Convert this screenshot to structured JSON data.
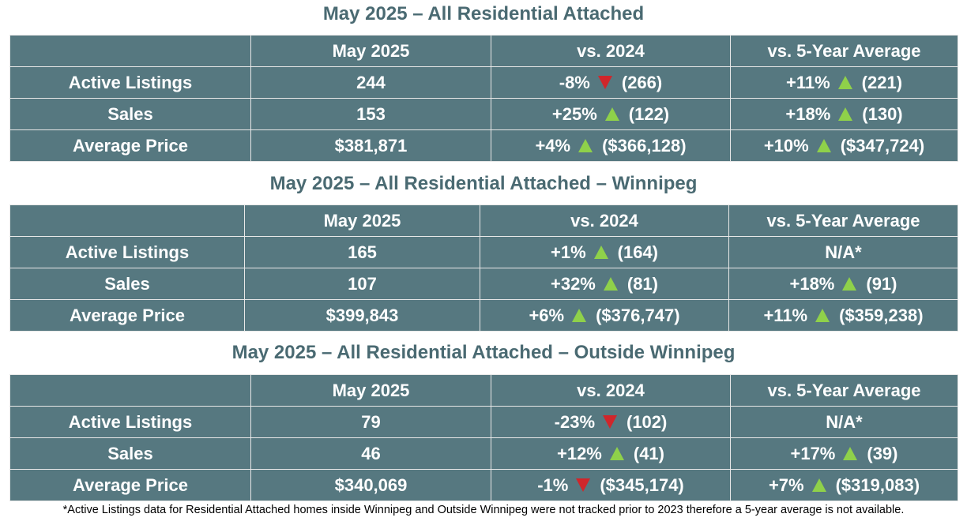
{
  "columns": {
    "current": "May 2025",
    "vs_prev": "vs. 2024",
    "vs_avg": "vs. 5-Year Average"
  },
  "sections": [
    {
      "title": "May 2025 – All Residential Attached",
      "rows": [
        {
          "label": "Active Listings",
          "value": "244",
          "prev_pct": "-8%",
          "prev_dir": "down",
          "prev_val": "(266)",
          "avg_pct": "+11%",
          "avg_dir": "up",
          "avg_val": "(221)",
          "avg_na": ""
        },
        {
          "label": "Sales",
          "value": "153",
          "prev_pct": "+25%",
          "prev_dir": "up",
          "prev_val": "(122)",
          "avg_pct": "+18%",
          "avg_dir": "up",
          "avg_val": "(130)",
          "avg_na": ""
        },
        {
          "label": "Average Price",
          "value": "$381,871",
          "prev_pct": "+4%",
          "prev_dir": "up",
          "prev_val": "($366,128)",
          "avg_pct": "+10%",
          "avg_dir": "up",
          "avg_val": "($347,724)",
          "avg_na": ""
        }
      ]
    },
    {
      "title": "May 2025 – All Residential Attached – Winnipeg",
      "rows": [
        {
          "label": "Active Listings",
          "value": "165",
          "prev_pct": "+1%",
          "prev_dir": "up",
          "prev_val": "(164)",
          "avg_pct": "",
          "avg_dir": "",
          "avg_val": "",
          "avg_na": "N/A*"
        },
        {
          "label": "Sales",
          "value": "107",
          "prev_pct": "+32%",
          "prev_dir": "up",
          "prev_val": "(81)",
          "avg_pct": "+18%",
          "avg_dir": "up",
          "avg_val": "(91)",
          "avg_na": ""
        },
        {
          "label": "Average Price",
          "value": "$399,843",
          "prev_pct": "+6%",
          "prev_dir": "up",
          "prev_val": "($376,747)",
          "avg_pct": "+11%",
          "avg_dir": "up",
          "avg_val": "($359,238)",
          "avg_na": ""
        }
      ]
    },
    {
      "title": "May 2025 – All Residential Attached – Outside Winnipeg",
      "rows": [
        {
          "label": "Active Listings",
          "value": "79",
          "prev_pct": "-23%",
          "prev_dir": "down",
          "prev_val": "(102)",
          "avg_pct": "",
          "avg_dir": "",
          "avg_val": "",
          "avg_na": "N/A*"
        },
        {
          "label": "Sales",
          "value": "46",
          "prev_pct": "+12%",
          "prev_dir": "up",
          "prev_val": "(41)",
          "avg_pct": "+17%",
          "avg_dir": "up",
          "avg_val": "(39)",
          "avg_na": ""
        },
        {
          "label": "Average Price",
          "value": "$340,069",
          "prev_pct": "-1%",
          "prev_dir": "down",
          "prev_val": "($345,174)",
          "avg_pct": "+7%",
          "avg_dir": "up",
          "avg_val": "($319,083)",
          "avg_na": ""
        }
      ]
    }
  ],
  "footnote": "*Active Listings data for Residential Attached homes inside Winnipeg and Outside Winnipeg were not tracked prior to 2023 therefore a 5-year average is not available.",
  "colors": {
    "title": "#4a6a72",
    "table_bg": "#567880",
    "up_arrow": "#8fd14a",
    "down_arrow": "#d0262b"
  }
}
